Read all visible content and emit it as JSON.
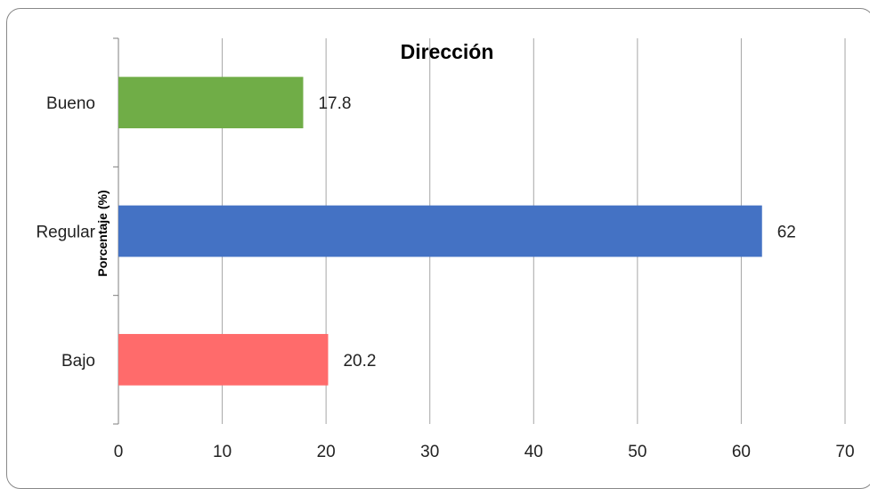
{
  "chart_data": {
    "type": "bar",
    "orientation": "horizontal",
    "title": "Dirección",
    "xlabel": "",
    "ylabel": "Porcentaje (%)",
    "categories": [
      "Bajo",
      "Regular",
      "Bueno"
    ],
    "values": [
      20.2,
      62,
      17.8
    ],
    "data_labels": [
      "20.2",
      "62",
      "17.8"
    ],
    "bar_colors": [
      "#ff6b6b",
      "#4472c4",
      "#70ad47"
    ],
    "xlim": [
      0,
      70
    ],
    "x_ticks": [
      0,
      10,
      20,
      30,
      40,
      50,
      60,
      70
    ],
    "x_tick_labels": [
      "0",
      "10",
      "20",
      "30",
      "40",
      "50",
      "60",
      "70"
    ],
    "grid": "vertical",
    "legend": "none"
  }
}
